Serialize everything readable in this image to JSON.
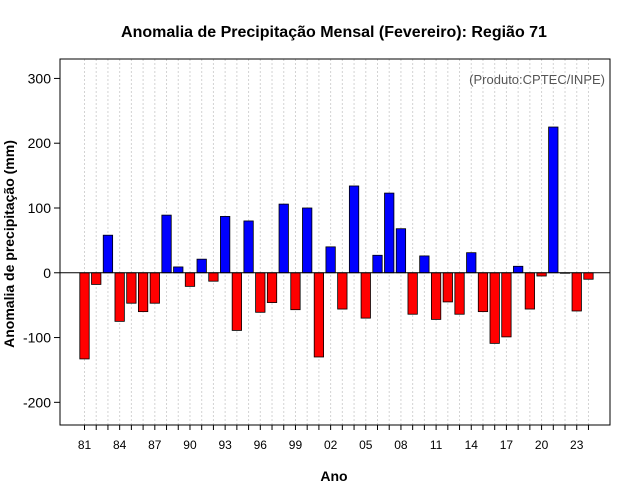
{
  "chart_data": {
    "type": "bar",
    "title": "Anomalia de Precipitação Mensal (Fevereiro): Região 71",
    "xlabel": "Ano",
    "ylabel": "Anomalia de precipitação (mm)",
    "credit": "(Produto:CPTEC/INPE)",
    "ylim": [
      -235,
      330
    ],
    "yticks": [
      -200,
      -100,
      0,
      100,
      200,
      300
    ],
    "years": [
      1981,
      1982,
      1983,
      1984,
      1985,
      1986,
      1987,
      1988,
      1989,
      1990,
      1991,
      1992,
      1993,
      1994,
      1995,
      1996,
      1997,
      1998,
      1999,
      2000,
      2001,
      2002,
      2003,
      2004,
      2005,
      2006,
      2007,
      2008,
      2009,
      2010,
      2011,
      2012,
      2013,
      2014,
      2015,
      2016,
      2017,
      2018,
      2019,
      2020,
      2021,
      2022,
      2023,
      2024
    ],
    "values": [
      -133,
      -18,
      58,
      -75,
      -47,
      -60,
      -47,
      89,
      9,
      -21,
      21,
      -13,
      87,
      -89,
      80,
      -61,
      -46,
      106,
      -57,
      100,
      -130,
      40,
      -56,
      134,
      -70,
      27,
      123,
      68,
      -64,
      26,
      -72,
      -45,
      -64,
      31,
      -60,
      -109,
      -99,
      10,
      -56,
      -5,
      225,
      0,
      -59,
      -10
    ],
    "xtick_labels": [
      "81",
      "84",
      "87",
      "90",
      "93",
      "96",
      "99",
      "02",
      "05",
      "08",
      "11",
      "14",
      "17",
      "20",
      "23"
    ],
    "xtick_index": [
      0,
      3,
      6,
      9,
      12,
      15,
      18,
      21,
      24,
      27,
      30,
      33,
      36,
      39,
      42
    ],
    "colors": {
      "positive": "#0000ff",
      "negative": "#ff0000",
      "grid": "#d3d3d3"
    }
  }
}
